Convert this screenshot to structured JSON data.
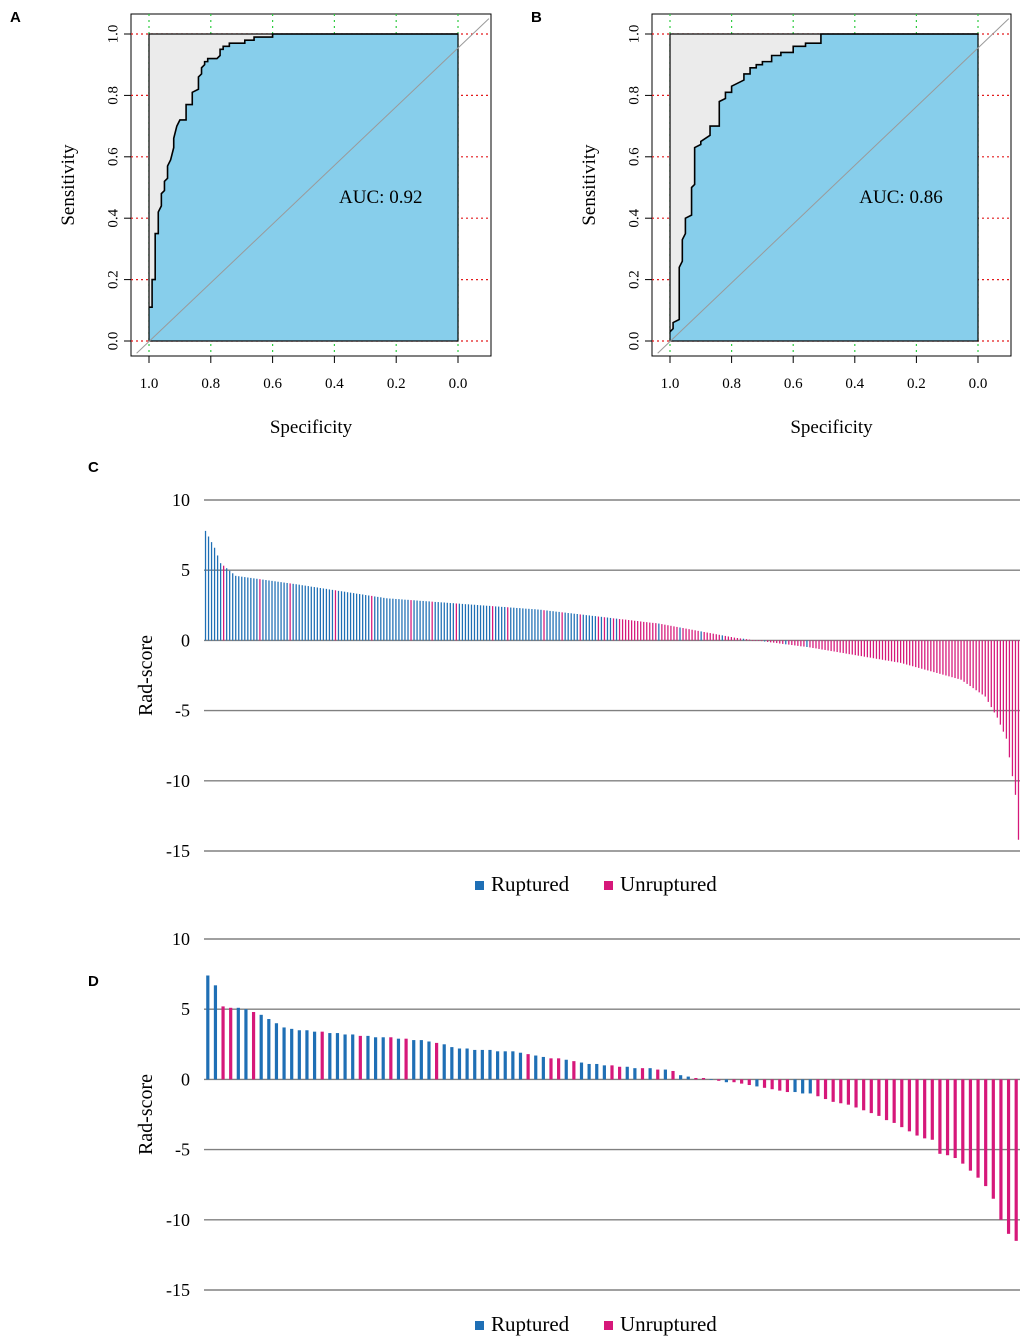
{
  "colors": {
    "auc_fill": "#87CEEB",
    "above_fill": "#EBEBEB",
    "grid_red": "#E31A1C",
    "grid_green": "#2ECC40",
    "ruptured": "#1F6FB5",
    "unruptured": "#D6187A",
    "waterfall_grid": "#808080"
  },
  "chart_data": [
    {
      "panel": "A",
      "type": "line",
      "subtype": "roc",
      "xlabel": "Specificity",
      "ylabel": "Sensitivity",
      "xlim": [
        1.0,
        0.0
      ],
      "ylim": [
        0.0,
        1.0
      ],
      "x_ticks": [
        "1.0",
        "0.8",
        "0.6",
        "0.4",
        "0.2",
        "0.0"
      ],
      "y_ticks": [
        "0.0",
        "0.2",
        "0.4",
        "0.6",
        "0.8",
        "1.0"
      ],
      "auc_label": "AUC: 0.92",
      "curve": {
        "specificity": [
          1.0,
          0.99,
          0.99,
          0.98,
          0.98,
          0.97,
          0.97,
          0.96,
          0.96,
          0.95,
          0.95,
          0.94,
          0.94,
          0.93,
          0.92,
          0.92,
          0.91,
          0.9,
          0.88,
          0.88,
          0.86,
          0.86,
          0.84,
          0.84,
          0.83,
          0.83,
          0.82,
          0.82,
          0.81,
          0.81,
          0.79,
          0.78,
          0.77,
          0.77,
          0.76,
          0.76,
          0.74,
          0.74,
          0.72,
          0.72,
          0.7,
          0.69,
          0.69,
          0.66,
          0.66,
          0.6,
          0.6,
          0.6,
          0.0
        ],
        "sensitivity": [
          0.11,
          0.11,
          0.2,
          0.2,
          0.35,
          0.35,
          0.42,
          0.44,
          0.48,
          0.49,
          0.52,
          0.53,
          0.57,
          0.59,
          0.63,
          0.66,
          0.7,
          0.72,
          0.72,
          0.77,
          0.77,
          0.81,
          0.82,
          0.86,
          0.87,
          0.89,
          0.9,
          0.91,
          0.91,
          0.92,
          0.92,
          0.92,
          0.93,
          0.95,
          0.95,
          0.96,
          0.96,
          0.97,
          0.97,
          0.97,
          0.97,
          0.97,
          0.98,
          0.98,
          0.99,
          0.99,
          1.0,
          1.0,
          1.0
        ]
      }
    },
    {
      "panel": "B",
      "type": "line",
      "subtype": "roc",
      "xlabel": "Specificity",
      "ylabel": "Sensitivity",
      "xlim": [
        1.0,
        0.0
      ],
      "ylim": [
        0.0,
        1.0
      ],
      "x_ticks": [
        "1.0",
        "0.8",
        "0.6",
        "0.4",
        "0.2",
        "0.0"
      ],
      "y_ticks": [
        "0.0",
        "0.2",
        "0.4",
        "0.6",
        "0.8",
        "1.0"
      ],
      "auc_label": "AUC: 0.86",
      "curve": {
        "specificity": [
          1.0,
          0.99,
          0.99,
          0.97,
          0.97,
          0.96,
          0.96,
          0.95,
          0.95,
          0.93,
          0.93,
          0.92,
          0.92,
          0.9,
          0.9,
          0.87,
          0.87,
          0.84,
          0.84,
          0.82,
          0.82,
          0.8,
          0.8,
          0.76,
          0.76,
          0.74,
          0.74,
          0.72,
          0.72,
          0.7,
          0.7,
          0.67,
          0.67,
          0.64,
          0.64,
          0.6,
          0.6,
          0.56,
          0.56,
          0.51,
          0.51,
          0.0
        ],
        "sensitivity": [
          0.03,
          0.04,
          0.06,
          0.07,
          0.24,
          0.26,
          0.33,
          0.35,
          0.4,
          0.41,
          0.5,
          0.51,
          0.63,
          0.64,
          0.65,
          0.67,
          0.7,
          0.7,
          0.78,
          0.79,
          0.81,
          0.81,
          0.83,
          0.85,
          0.87,
          0.87,
          0.89,
          0.89,
          0.9,
          0.9,
          0.91,
          0.91,
          0.93,
          0.93,
          0.94,
          0.94,
          0.96,
          0.96,
          0.97,
          0.97,
          1.0,
          1.0
        ]
      }
    },
    {
      "panel": "C",
      "type": "bar",
      "subtype": "waterfall",
      "ylabel": "Rad-score",
      "ylim": [
        -15,
        10
      ],
      "y_ticks": [
        10,
        5,
        0,
        -5,
        -10,
        -15
      ],
      "legend": [
        {
          "label": "Ruptured",
          "class": "R"
        },
        {
          "label": "Unruptured",
          "class": "U"
        }
      ],
      "n_bars": 270,
      "ruptured_bars": 150,
      "values_note": "sorted descending rad-scores per patient",
      "anchors": [
        [
          0,
          7.8
        ],
        [
          1,
          7.4
        ],
        [
          3,
          6.6
        ],
        [
          5,
          5.5
        ],
        [
          10,
          4.6
        ],
        [
          30,
          4.0
        ],
        [
          60,
          3.0
        ],
        [
          110,
          2.2
        ],
        [
          150,
          1.2
        ],
        [
          175,
          0.2
        ],
        [
          200,
          -0.5
        ],
        [
          230,
          -1.6
        ],
        [
          250,
          -2.8
        ],
        [
          258,
          -4.0
        ],
        [
          262,
          -5.5
        ],
        [
          265,
          -7.0
        ],
        [
          268,
          -11.0
        ],
        [
          269,
          -14.2
        ]
      ],
      "unruptured_indices": [
        6,
        18,
        28,
        43,
        55,
        68,
        75,
        83,
        95,
        100,
        112,
        118,
        124,
        130,
        132,
        135,
        137,
        138,
        139,
        140,
        141,
        142,
        143,
        144,
        145,
        146,
        147,
        148,
        149
      ]
    },
    {
      "panel": "D",
      "type": "bar",
      "subtype": "waterfall",
      "ylabel": "Rad-score",
      "ylim": [
        -15,
        10
      ],
      "y_ticks": [
        10,
        5,
        0,
        -5,
        -10,
        -15
      ],
      "legend": [
        {
          "label": "Ruptured",
          "class": "R"
        },
        {
          "label": "Unruptured",
          "class": "U"
        }
      ],
      "values": [
        7.4,
        6.7,
        5.2,
        5.1,
        5.1,
        5.0,
        4.8,
        4.6,
        4.3,
        4.0,
        3.7,
        3.6,
        3.5,
        3.5,
        3.4,
        3.4,
        3.3,
        3.3,
        3.2,
        3.2,
        3.1,
        3.1,
        3.0,
        3.0,
        3.0,
        2.9,
        2.9,
        2.8,
        2.8,
        2.7,
        2.6,
        2.5,
        2.3,
        2.2,
        2.2,
        2.1,
        2.1,
        2.1,
        2.0,
        2.0,
        2.0,
        1.9,
        1.8,
        1.7,
        1.6,
        1.5,
        1.5,
        1.4,
        1.3,
        1.2,
        1.1,
        1.1,
        1.0,
        1.0,
        0.9,
        0.9,
        0.8,
        0.8,
        0.8,
        0.7,
        0.7,
        0.6,
        0.3,
        0.2,
        0.1,
        0.1,
        0.0,
        -0.1,
        -0.2,
        -0.2,
        -0.3,
        -0.4,
        -0.5,
        -0.6,
        -0.7,
        -0.8,
        -0.9,
        -0.9,
        -1.0,
        -1.0,
        -1.2,
        -1.4,
        -1.6,
        -1.7,
        -1.8,
        -2.0,
        -2.2,
        -2.4,
        -2.6,
        -2.9,
        -3.1,
        -3.4,
        -3.7,
        -4.0,
        -4.2,
        -4.3,
        -5.3,
        -5.4,
        -5.6,
        -6.0,
        -6.5,
        -7.0,
        -7.6,
        -8.5,
        -10.0,
        -11.0,
        -11.5
      ],
      "classes": [
        "R",
        "R",
        "U",
        "U",
        "R",
        "R",
        "U",
        "R",
        "R",
        "R",
        "R",
        "R",
        "R",
        "R",
        "R",
        "U",
        "R",
        "R",
        "R",
        "R",
        "U",
        "R",
        "R",
        "R",
        "U",
        "R",
        "U",
        "R",
        "R",
        "R",
        "U",
        "R",
        "R",
        "R",
        "R",
        "R",
        "R",
        "R",
        "R",
        "R",
        "R",
        "R",
        "U",
        "R",
        "R",
        "U",
        "U",
        "R",
        "U",
        "R",
        "R",
        "R",
        "R",
        "U",
        "U",
        "R",
        "R",
        "U",
        "R",
        "U",
        "R",
        "U",
        "R",
        "R",
        "U",
        "U",
        "R",
        "U",
        "R",
        "U",
        "U",
        "U",
        "R",
        "U",
        "U",
        "U",
        "U",
        "R",
        "R",
        "R",
        "U",
        "U",
        "U",
        "U",
        "U",
        "U",
        "U",
        "U",
        "U",
        "U",
        "U",
        "U",
        "U",
        "U",
        "U",
        "U",
        "U",
        "U",
        "U",
        "U",
        "U",
        "U",
        "U",
        "U",
        "U",
        "U",
        "U"
      ]
    }
  ],
  "panels": {
    "a": {
      "letter": "A"
    },
    "b": {
      "letter": "B"
    },
    "c": {
      "letter": "C"
    },
    "d": {
      "letter": "D"
    }
  }
}
